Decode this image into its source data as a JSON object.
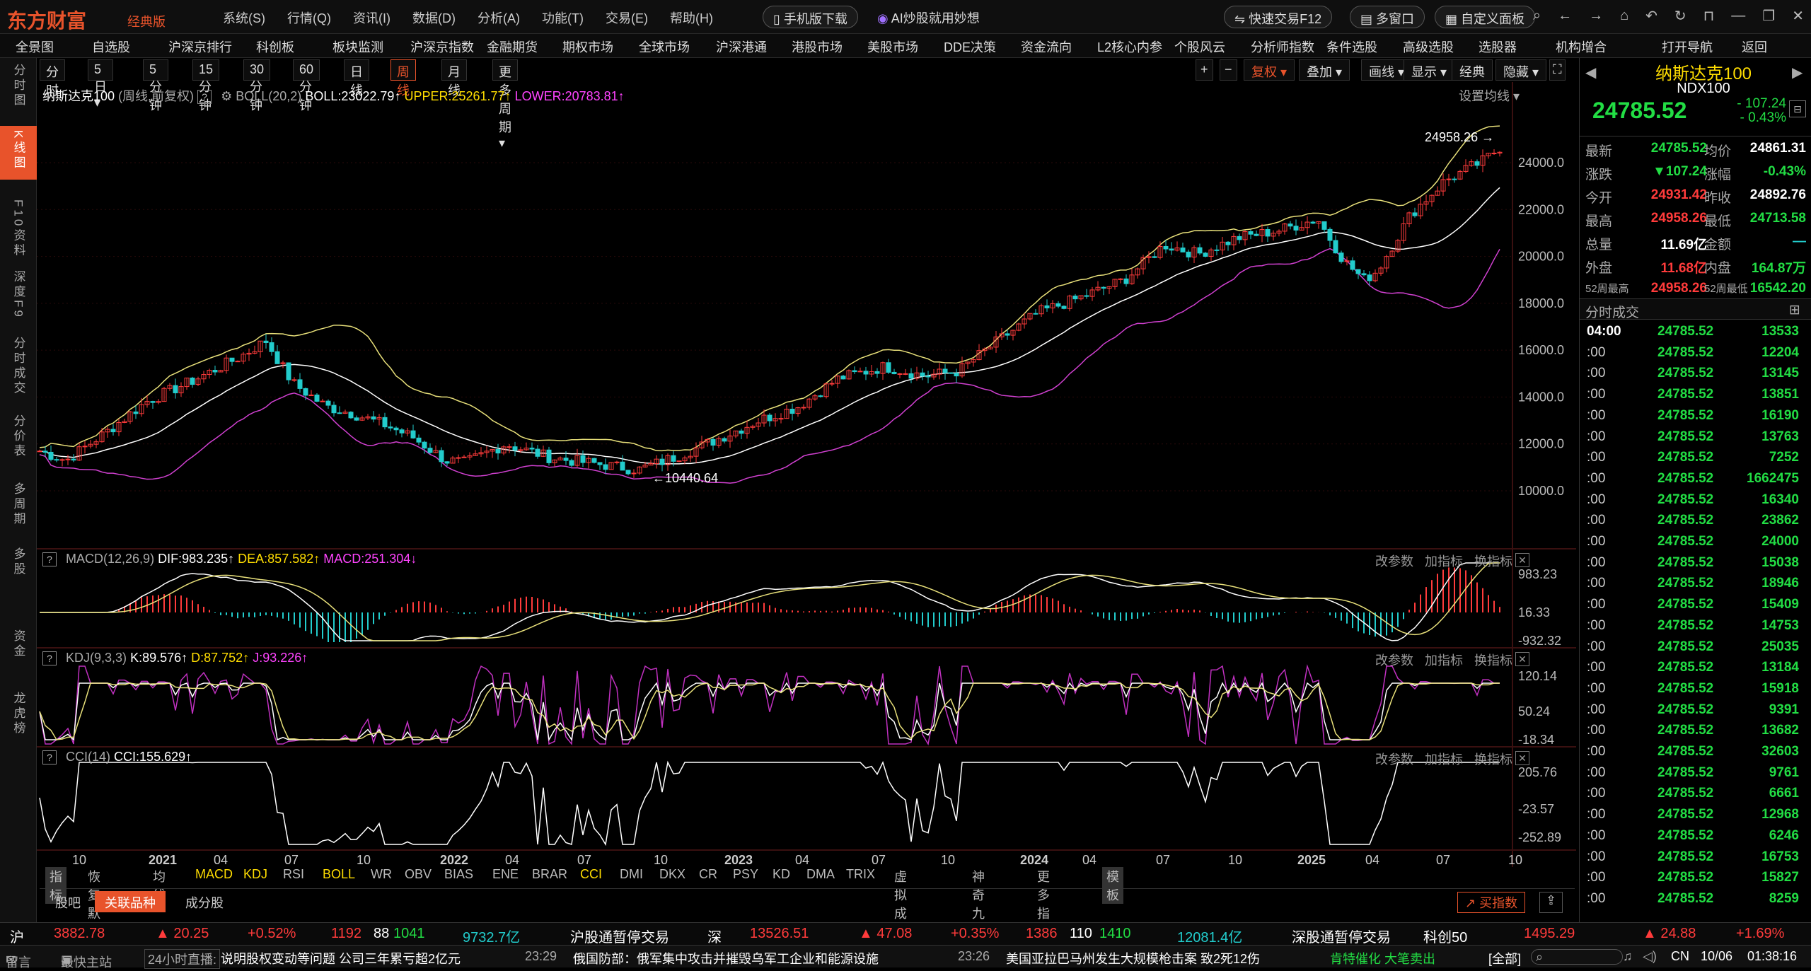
{
  "app": {
    "logo": "东方财富",
    "edition": "经典版"
  },
  "menus": [
    "系统(S)",
    "行情(Q)",
    "资讯(I)",
    "数据(D)",
    "分析(A)",
    "功能(T)",
    "交易(E)",
    "帮助(H)"
  ],
  "promo": {
    "mobile": "手机版下载",
    "ai": "AI炒股就用妙想"
  },
  "top_right": {
    "quick_trade": "快速交易F12",
    "multi_window": "多窗口",
    "custom_layout": "自定义面板"
  },
  "nav": [
    "全景图",
    "自选股",
    "沪深京排行",
    "科创板",
    "板块监测",
    "沪深京指数",
    "金融期货",
    "期权市场",
    "全球市场",
    "沪深港通",
    "港股市场",
    "美股市场",
    "DDE决策",
    "资金流向",
    "L2核心内参",
    "个股风云",
    "分析师指数",
    "条件选股",
    "高级选股",
    "选股器",
    "机构增合",
    "打开导航",
    "返回"
  ],
  "left_tabs": [
    "分时图",
    "K线图",
    "F10资料",
    "深度F9",
    "分时成交",
    "分价表",
    "多周期",
    "多股",
    "资金",
    "龙虎榜"
  ],
  "periods": [
    "分时",
    "5日",
    "5分钟",
    "15分钟",
    "30分钟",
    "60分钟",
    "日线",
    "周线",
    "月线",
    "更多周期"
  ],
  "toolbar": [
    "复权",
    "叠加",
    "画线",
    "显示",
    "经典",
    "隐藏"
  ],
  "main_panel": {
    "name": "纳斯达克100",
    "mode": "(周线,前复权)",
    "boll": "BOLL(20,2)",
    "boll_val": "BOLL:23022.79",
    "upper": "UPPER:25261.77",
    "lower": "LOWER:20783.81",
    "settings": "设置均线",
    "high_label": "24958.26",
    "low_label": "10440.64",
    "yticks": [
      "24000.0",
      "22000.0",
      "20000.0",
      "18000.0",
      "16000.0",
      "14000.0",
      "12000.0",
      "10000.0"
    ]
  },
  "macd_panel": {
    "name": "MACD(12,26,9)",
    "dif": "DIF:983.235",
    "dea": "DEA:857.582",
    "macd": "MACD:251.304",
    "yticks": [
      "983.23",
      "16.33",
      "-932.32"
    ]
  },
  "kdj_panel": {
    "name": "KDJ(9,3,3)",
    "k": "K:89.576",
    "d": "D:87.752",
    "j": "J:93.226",
    "yticks": [
      "120.14",
      "50.24",
      "-18.34"
    ]
  },
  "cci_panel": {
    "name": "CCI(14)",
    "cci": "CCI:155.629",
    "yticks": [
      "205.76",
      "-23.57",
      "-252.89"
    ]
  },
  "panel_actions": [
    "改参数",
    "加指标",
    "换指标"
  ],
  "xaxis": [
    "10",
    "2021",
    "04",
    "07",
    "10",
    "2022",
    "04",
    "07",
    "10",
    "2023",
    "04",
    "07",
    "10",
    "2024",
    "04",
    "07",
    "10",
    "2025",
    "04",
    "07",
    "10"
  ],
  "indicator_tabs": [
    "指标",
    "恢复默认",
    "均线",
    "MACD",
    "KDJ",
    "RSI",
    "BOLL",
    "WR",
    "OBV",
    "BIAS",
    "ENE",
    "BRAR",
    "CCI",
    "DMI",
    "DKX",
    "CR",
    "PSY",
    "KD",
    "DMA",
    "TRIX",
    "虚拟成交量",
    "神奇九转",
    "更多指标",
    "模板"
  ],
  "stock_tabs": [
    "股吧",
    "关联品种",
    "成分股"
  ],
  "buy_index": "买指数",
  "quote": {
    "name": "纳斯达克100",
    "code": "NDX100",
    "price": "24785.52",
    "change": "- 107.24",
    "pct": "- 0.43%",
    "rows": [
      [
        "最新",
        "24785.52",
        "均价",
        "24861.31"
      ],
      [
        "涨跌",
        "▼107.24",
        "涨幅",
        "-0.43%"
      ],
      [
        "今开",
        "24931.42",
        "昨收",
        "24892.76"
      ],
      [
        "最高",
        "24958.26",
        "最低",
        "24713.58"
      ],
      [
        "总量",
        "11.69亿",
        "金额",
        "—"
      ],
      [
        "外盘",
        "11.68亿",
        "内盘",
        "164.87万"
      ],
      [
        "52周最高",
        "24958.26",
        "52周最低",
        "16542.20"
      ]
    ]
  },
  "ticks_title": "分时成交",
  "ticks": [
    [
      "04:00",
      "24785.52",
      "13533"
    ],
    [
      ":00",
      "24785.52",
      "12204"
    ],
    [
      ":00",
      "24785.52",
      "13145"
    ],
    [
      ":00",
      "24785.52",
      "13851"
    ],
    [
      ":00",
      "24785.52",
      "16190"
    ],
    [
      ":00",
      "24785.52",
      "13763"
    ],
    [
      ":00",
      "24785.52",
      "7252"
    ],
    [
      ":00",
      "24785.52",
      "1662475"
    ],
    [
      ":00",
      "24785.52",
      "16340"
    ],
    [
      ":00",
      "24785.52",
      "23862"
    ],
    [
      ":00",
      "24785.52",
      "24000"
    ],
    [
      ":00",
      "24785.52",
      "15038"
    ],
    [
      ":00",
      "24785.52",
      "18946"
    ],
    [
      ":00",
      "24785.52",
      "15409"
    ],
    [
      ":00",
      "24785.52",
      "14753"
    ],
    [
      ":00",
      "24785.52",
      "25035"
    ],
    [
      ":00",
      "24785.52",
      "13184"
    ],
    [
      ":00",
      "24785.52",
      "15918"
    ],
    [
      ":00",
      "24785.52",
      "9391"
    ],
    [
      ":00",
      "24785.52",
      "13682"
    ],
    [
      ":00",
      "24785.52",
      "32603"
    ],
    [
      ":00",
      "24785.52",
      "9761"
    ],
    [
      ":00",
      "24785.52",
      "6661"
    ],
    [
      ":00",
      "24785.52",
      "12968"
    ],
    [
      ":00",
      "24785.52",
      "6246"
    ],
    [
      ":00",
      "24785.52",
      "16753"
    ],
    [
      ":00",
      "24785.52",
      "15827"
    ],
    [
      ":00",
      "24785.52",
      "8259"
    ]
  ],
  "status1": {
    "sh": "沪",
    "sh_val": "3882.78",
    "sh_chg": "▲ 20.25",
    "sh_pct": "+0.52%",
    "sh_up": "1192",
    "sh_flat": "88",
    "sh_down": "1041",
    "sh_amt": "9732.7亿",
    "sh_conn": "沪股通暂停交易",
    "sz": "深",
    "sz_val": "13526.51",
    "sz_chg": "▲ 47.08",
    "sz_pct": "+0.35%",
    "sz_up": "1386",
    "sz_flat": "110",
    "sz_down": "1410",
    "sz_amt": "12081.4亿",
    "sz_conn": "深股通暂停交易",
    "kc": "科创50",
    "kc_val": "1495.29",
    "kc_chg": "▲ 24.88",
    "kc_pct": "+1.69%"
  },
  "status2": {
    "msg": "留言",
    "service": "最快主站",
    "live": "24小时直播:",
    "news1": "说明股权变动等问题 公司三年累亏超2亿元",
    "t1": "23:29",
    "news2": "俄国防部：俄军集中攻击并摧毁乌军工企业和能源设施",
    "t2": "23:26",
    "news3": "美国亚拉巴马州发生大规模枪击案 致2死12伤",
    "alert": "肯特催化 大笔卖出",
    "all": "[全部]",
    "region": "CN",
    "date": "10/06",
    "time": "01:38:16"
  },
  "colors": {
    "accent": "#e8532b",
    "up": "#ff3b3b",
    "down": "#22dd44"
  }
}
